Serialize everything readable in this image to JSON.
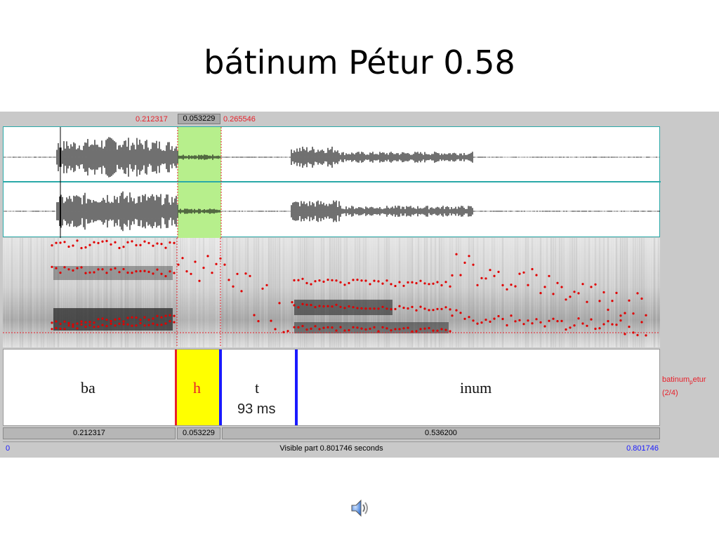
{
  "slide": {
    "title": "bátinum Pétur 0.58"
  },
  "selection": {
    "start": "0.212317",
    "duration": "0.053229",
    "end": "0.265546"
  },
  "tier": {
    "segments": {
      "ba": "ba",
      "h": "h",
      "t": "t",
      "t_duration": "93 ms",
      "inum": "inum"
    },
    "name": "batinum",
    "name_sub": "p",
    "name_rest": "etur",
    "index": "(2/4)"
  },
  "duration_bar": {
    "left": "0.212317",
    "selected": "0.053229",
    "right": "0.536200"
  },
  "bottom_bar": {
    "start": "0",
    "visible": "Visible part 0.801746 seconds",
    "end": "0.801746"
  },
  "icons": {
    "audio": "speaker-icon"
  },
  "colors": {
    "selection": "#b7ef8c",
    "interval_fill": "#ffff00",
    "boundary_red": "#e8202a",
    "boundary_blue": "#1a1aff",
    "pitch": "#e00000"
  }
}
